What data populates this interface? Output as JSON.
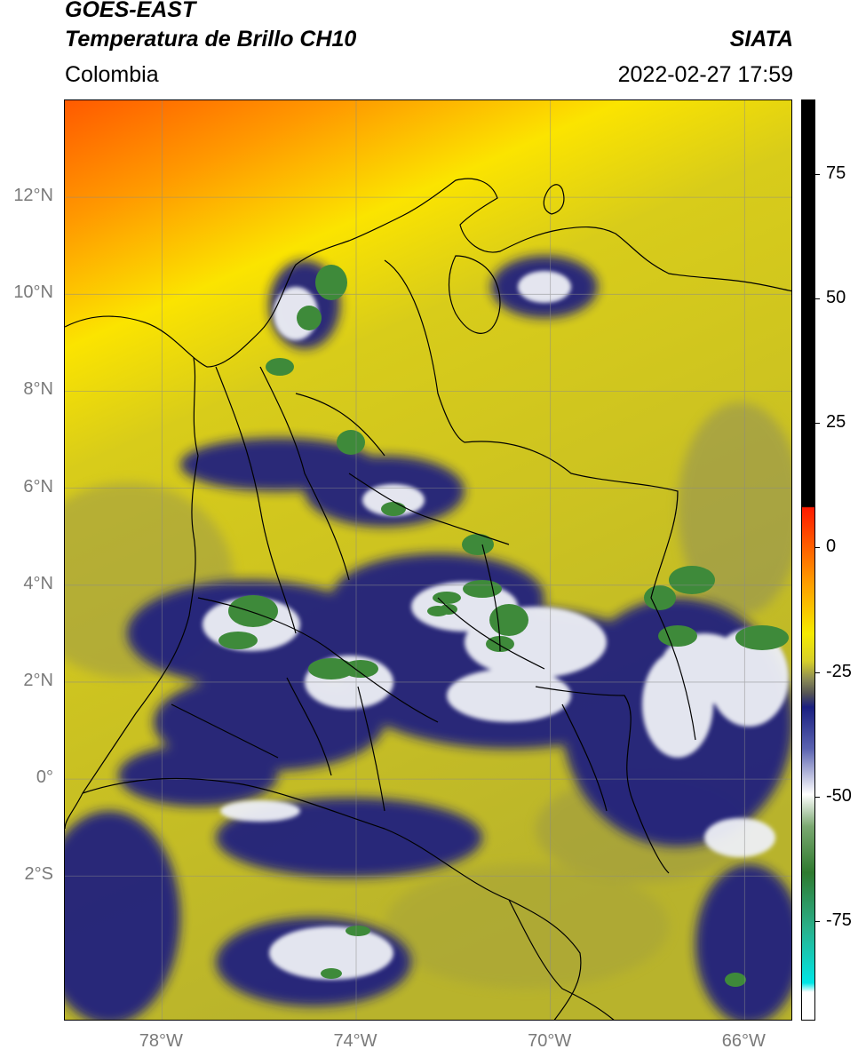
{
  "header": {
    "title_line1": "GOES-EAST",
    "title_line2": "Temperatura de Brillo CH10",
    "organization": "SIATA",
    "region": "Colombia",
    "timestamp": "2022-02-27 17:59"
  },
  "map": {
    "lon_range": [
      -80,
      -65
    ],
    "lat_range": [
      -5,
      14
    ],
    "lat_ticks": [
      {
        "value": 12,
        "label": "12°N"
      },
      {
        "value": 10,
        "label": "10°N"
      },
      {
        "value": 8,
        "label": "8°N"
      },
      {
        "value": 6,
        "label": "6°N"
      },
      {
        "value": 4,
        "label": "4°N"
      },
      {
        "value": 2,
        "label": "2°N"
      },
      {
        "value": 0,
        "label": "0°"
      },
      {
        "value": -2,
        "label": "2°S"
      }
    ],
    "lon_ticks": [
      {
        "value": -78,
        "label": "78°W"
      },
      {
        "value": -74,
        "label": "74°W"
      },
      {
        "value": -70,
        "label": "70°W"
      },
      {
        "value": -66,
        "label": "66°W"
      }
    ],
    "grid": true,
    "colors": {
      "warm": "#ff6a00",
      "yellow": "#f2e600",
      "olive": "#bdb62a",
      "navy": "#1a1f80",
      "white": "#f3f3f7",
      "green": "#3e8a3a",
      "border": "#000000"
    }
  },
  "colorbar": {
    "range": [
      -95,
      90
    ],
    "ticks": [
      {
        "value": 75,
        "label": "75"
      },
      {
        "value": 50,
        "label": "50"
      },
      {
        "value": 25,
        "label": "25"
      },
      {
        "value": 0,
        "label": "0"
      },
      {
        "value": -25,
        "label": "-25"
      },
      {
        "value": -50,
        "label": "-50"
      },
      {
        "value": -75,
        "label": "-75"
      }
    ]
  }
}
